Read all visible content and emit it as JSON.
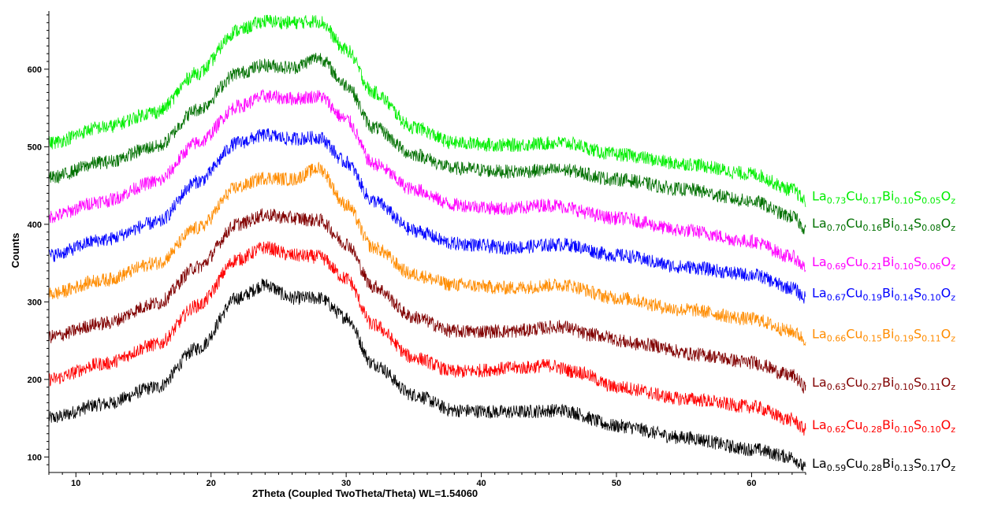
{
  "chart_data": {
    "type": "line",
    "title": "",
    "xlabel": "2Theta (Coupled TwoTheta/Theta) WL=1.54060",
    "ylabel": "Counts",
    "xlim": [
      8,
      64
    ],
    "ylim": [
      80,
      675
    ],
    "x_ticks": [
      10,
      20,
      30,
      40,
      50,
      60
    ],
    "y_ticks": [
      100,
      200,
      300,
      400,
      500,
      600
    ],
    "grid": false,
    "legend_placement": "right, labels aligned with curve ends",
    "series": [
      {
        "name": "La0.59Cu0.28Bi0.13S0.17Oz",
        "legend": [
          [
            "La",
            ""
          ],
          [
            "Cu",
            "0.28"
          ],
          [
            "Bi",
            "0.13"
          ],
          [
            "S",
            "0.17"
          ],
          [
            "O",
            "z"
          ]
        ],
        "legend_subs": [
          "0.59",
          "0.28",
          "0.13",
          "0.17",
          "z"
        ],
        "color": "#000000",
        "points": [
          [
            8,
            150
          ],
          [
            12,
            168
          ],
          [
            16,
            190
          ],
          [
            19,
            240
          ],
          [
            22,
            305
          ],
          [
            24,
            322
          ],
          [
            26,
            305
          ],
          [
            28,
            305
          ],
          [
            30,
            280
          ],
          [
            32,
            220
          ],
          [
            35,
            180
          ],
          [
            38,
            160
          ],
          [
            42,
            158
          ],
          [
            46,
            160
          ],
          [
            50,
            140
          ],
          [
            55,
            125
          ],
          [
            60,
            110
          ],
          [
            63,
            100
          ],
          [
            64,
            85
          ]
        ]
      },
      {
        "name": "La0.62Cu0.28Bi0.10S0.10Oz",
        "legend_subs": [
          "0.62",
          "0.28",
          "0.10",
          "0.10",
          "z"
        ],
        "color": "#ff0000",
        "points": [
          [
            8,
            200
          ],
          [
            12,
            220
          ],
          [
            16,
            245
          ],
          [
            19,
            295
          ],
          [
            22,
            355
          ],
          [
            24,
            370
          ],
          [
            26,
            360
          ],
          [
            28,
            358
          ],
          [
            30,
            330
          ],
          [
            32,
            270
          ],
          [
            35,
            228
          ],
          [
            38,
            210
          ],
          [
            43,
            215
          ],
          [
            45,
            218
          ],
          [
            47,
            210
          ],
          [
            50,
            190
          ],
          [
            55,
            175
          ],
          [
            60,
            165
          ],
          [
            63,
            148
          ],
          [
            64,
            135
          ]
        ]
      },
      {
        "name": "La0.63Cu0.27Bi0.10S0.11Oz",
        "legend_subs": [
          "0.63",
          "0.27",
          "0.10",
          "0.11",
          "z"
        ],
        "color": "#800000",
        "points": [
          [
            8,
            255
          ],
          [
            12,
            272
          ],
          [
            16,
            298
          ],
          [
            19,
            345
          ],
          [
            22,
            400
          ],
          [
            24,
            412
          ],
          [
            26,
            408
          ],
          [
            28,
            405
          ],
          [
            30,
            375
          ],
          [
            32,
            320
          ],
          [
            35,
            280
          ],
          [
            38,
            262
          ],
          [
            42,
            262
          ],
          [
            46,
            268
          ],
          [
            48,
            258
          ],
          [
            52,
            245
          ],
          [
            56,
            232
          ],
          [
            60,
            222
          ],
          [
            63,
            205
          ],
          [
            64,
            190
          ]
        ]
      },
      {
        "name": "La0.66Cu0.15Bi0.19S0.11Oz",
        "legend_subs": [
          "0.66",
          "0.15",
          "0.19",
          "0.11",
          "z"
        ],
        "color": "#ff8c00",
        "points": [
          [
            8,
            310
          ],
          [
            12,
            328
          ],
          [
            16,
            350
          ],
          [
            19,
            395
          ],
          [
            22,
            448
          ],
          [
            24,
            460
          ],
          [
            26,
            458
          ],
          [
            28,
            472
          ],
          [
            30,
            425
          ],
          [
            32,
            370
          ],
          [
            35,
            335
          ],
          [
            38,
            322
          ],
          [
            42,
            318
          ],
          [
            46,
            322
          ],
          [
            50,
            305
          ],
          [
            55,
            290
          ],
          [
            60,
            278
          ],
          [
            63,
            262
          ],
          [
            64,
            252
          ]
        ]
      },
      {
        "name": "La0.67Cu0.19Bi0.14S0.10Oz",
        "legend_subs": [
          "0.67",
          "0.19",
          "0.14",
          "0.10",
          "z"
        ],
        "color": "#0000ff",
        "points": [
          [
            8,
            360
          ],
          [
            12,
            380
          ],
          [
            16,
            402
          ],
          [
            19,
            455
          ],
          [
            22,
            505
          ],
          [
            24,
            515
          ],
          [
            26,
            510
          ],
          [
            28,
            512
          ],
          [
            30,
            480
          ],
          [
            32,
            430
          ],
          [
            35,
            392
          ],
          [
            38,
            375
          ],
          [
            42,
            370
          ],
          [
            46,
            374
          ],
          [
            50,
            360
          ],
          [
            55,
            345
          ],
          [
            60,
            335
          ],
          [
            63,
            318
          ],
          [
            64,
            305
          ]
        ]
      },
      {
        "name": "La0.69Cu0.21Bi0.10S0.06Oz",
        "legend_subs": [
          "0.69",
          "0.21",
          "0.10",
          "0.06",
          "z"
        ],
        "color": "#ff00ff",
        "points": [
          [
            8,
            410
          ],
          [
            12,
            430
          ],
          [
            16,
            455
          ],
          [
            19,
            505
          ],
          [
            22,
            552
          ],
          [
            24,
            565
          ],
          [
            26,
            562
          ],
          [
            28,
            565
          ],
          [
            30,
            535
          ],
          [
            32,
            478
          ],
          [
            35,
            445
          ],
          [
            38,
            425
          ],
          [
            42,
            420
          ],
          [
            45,
            425
          ],
          [
            50,
            408
          ],
          [
            55,
            392
          ],
          [
            60,
            378
          ],
          [
            63,
            358
          ],
          [
            64,
            345
          ]
        ]
      },
      {
        "name": "La0.70Cu0.16Bi0.14S0.08Oz",
        "legend_subs": [
          "0.70",
          "0.16",
          "0.14",
          "0.08",
          "z"
        ],
        "color": "#007000",
        "points": [
          [
            8,
            460
          ],
          [
            12,
            480
          ],
          [
            16,
            500
          ],
          [
            19,
            548
          ],
          [
            22,
            595
          ],
          [
            24,
            605
          ],
          [
            26,
            602
          ],
          [
            28,
            615
          ],
          [
            30,
            580
          ],
          [
            32,
            525
          ],
          [
            35,
            490
          ],
          [
            38,
            472
          ],
          [
            42,
            468
          ],
          [
            46,
            470
          ],
          [
            50,
            458
          ],
          [
            55,
            445
          ],
          [
            60,
            430
          ],
          [
            63,
            410
          ],
          [
            64,
            395
          ]
        ]
      },
      {
        "name": "La0.73Cu0.17Bi0.10S0.05Oz",
        "legend_subs": [
          "0.73",
          "0.17",
          "0.10",
          "0.05",
          "z"
        ],
        "color": "#00ee00",
        "points": [
          [
            8,
            505
          ],
          [
            12,
            525
          ],
          [
            16,
            545
          ],
          [
            19,
            595
          ],
          [
            22,
            650
          ],
          [
            24,
            662
          ],
          [
            26,
            660
          ],
          [
            28,
            662
          ],
          [
            30,
            625
          ],
          [
            32,
            570
          ],
          [
            35,
            525
          ],
          [
            38,
            505
          ],
          [
            42,
            502
          ],
          [
            46,
            505
          ],
          [
            50,
            490
          ],
          [
            55,
            478
          ],
          [
            60,
            465
          ],
          [
            63,
            445
          ],
          [
            64,
            430
          ]
        ]
      }
    ]
  },
  "legend_elements": [
    "La",
    "Cu",
    "Bi",
    "S",
    "O"
  ]
}
